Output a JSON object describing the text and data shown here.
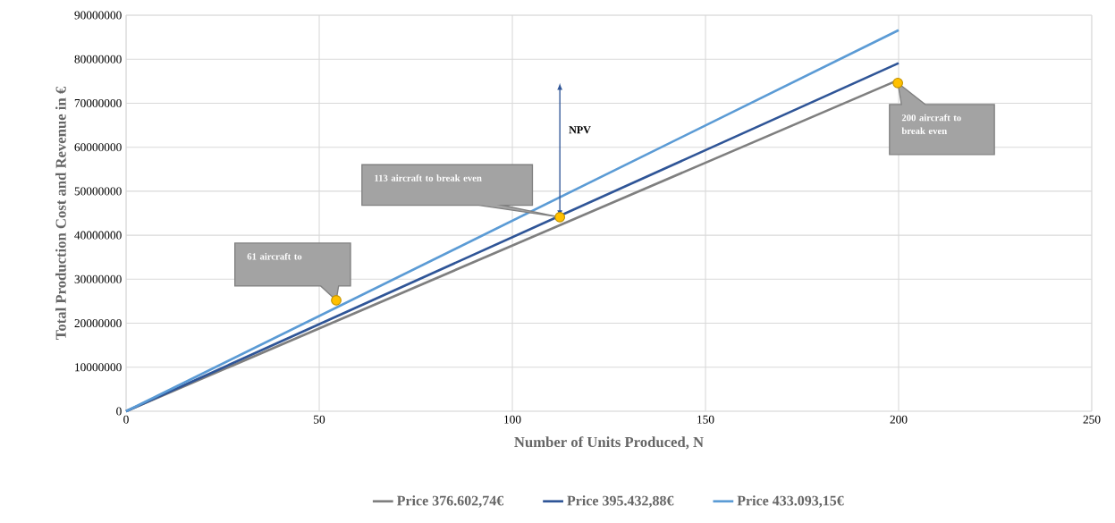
{
  "chart_data": {
    "type": "line",
    "xlabel": "Number of Units Produced, N",
    "ylabel": "Total Production Cost and Revenue in €",
    "xlim": [
      0,
      250
    ],
    "xticks": [
      0,
      50,
      100,
      150,
      200,
      250
    ],
    "ylim": [
      0,
      90000000
    ],
    "yticks": [
      0,
      10000000,
      20000000,
      30000000,
      40000000,
      50000000,
      60000000,
      70000000,
      80000000,
      90000000
    ],
    "grid": true,
    "legend": "bottom",
    "marker": "none",
    "line_style": "solid",
    "series": [
      {
        "name": "Price 376.602,74€",
        "color": "#7f7f7f",
        "x": [
          0,
          200
        ],
        "values": [
          0,
          75300000
        ]
      },
      {
        "name": "Price 395.432,88€",
        "color": "#2f5597",
        "x": [
          0,
          200
        ],
        "values": [
          0,
          79100000
        ]
      },
      {
        "name": "Price 433.093,15€",
        "color": "#5b9bd5",
        "x": [
          0,
          200
        ],
        "values": [
          0,
          86600000
        ]
      },
      {
        "type": "scatter",
        "color": "#ffc000",
        "marker": "circle",
        "x": [
          54.4,
          112.3,
          199.8
        ],
        "values": [
          25200000,
          44100000,
          74600000
        ]
      }
    ],
    "annotations": [
      "61 aircraft to",
      "113 aircraft to break even",
      "200 aircraft to break even",
      "NPV"
    ]
  }
}
